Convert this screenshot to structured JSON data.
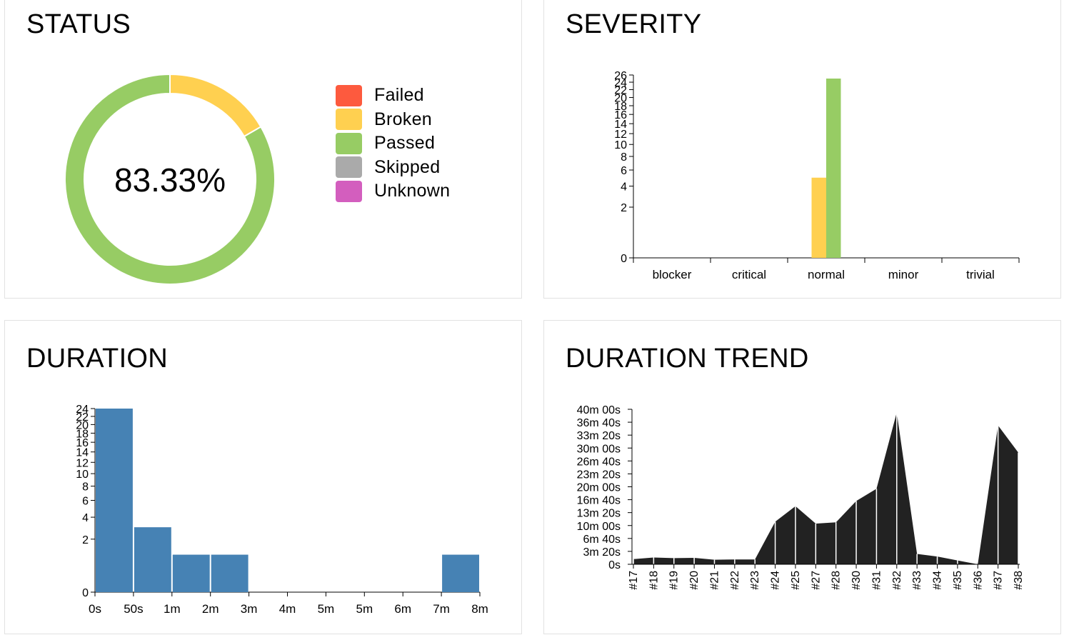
{
  "status": {
    "title": "STATUS",
    "center_label": "83.33%",
    "legend": [
      {
        "key": "failed",
        "label": "Failed",
        "color": "#fd5a3e"
      },
      {
        "key": "broken",
        "label": "Broken",
        "color": "#ffd050"
      },
      {
        "key": "passed",
        "label": "Passed",
        "color": "#97cc64"
      },
      {
        "key": "skipped",
        "label": "Skipped",
        "color": "#aaaaaa"
      },
      {
        "key": "unknown",
        "label": "Unknown",
        "color": "#d35ebe"
      }
    ],
    "chart_data": {
      "type": "pie",
      "categories": [
        "Failed",
        "Broken",
        "Passed",
        "Skipped",
        "Unknown"
      ],
      "values": [
        0,
        5,
        25,
        0,
        0
      ],
      "colors": [
        "#fd5a3e",
        "#ffd050",
        "#97cc64",
        "#aaaaaa",
        "#d35ebe"
      ]
    }
  },
  "severity": {
    "title": "SEVERITY",
    "chart_data": {
      "type": "bar",
      "categories": [
        "blocker",
        "critical",
        "normal",
        "minor",
        "trivial"
      ],
      "series": [
        {
          "key": "broken",
          "color": "#ffd050",
          "values": [
            0,
            0,
            5,
            0,
            0
          ]
        },
        {
          "key": "passed",
          "color": "#97cc64",
          "values": [
            0,
            0,
            25,
            0,
            0
          ]
        }
      ],
      "yticks": [
        0,
        2,
        4,
        6,
        8,
        10,
        12,
        14,
        16,
        18,
        20,
        22,
        24,
        26
      ],
      "ylim": [
        0,
        26
      ],
      "yscale": "sqrt"
    }
  },
  "duration": {
    "title": "DURATION",
    "chart_data": {
      "type": "bar",
      "x_tick_labels": [
        "0s",
        "50s",
        "1m",
        "2m",
        "3m",
        "4m",
        "5m",
        "5m",
        "6m",
        "7m",
        "8m"
      ],
      "bins": [
        {
          "from": 0,
          "to": 1,
          "value": 24
        },
        {
          "from": 1,
          "to": 2,
          "value": 3
        },
        {
          "from": 2,
          "to": 3,
          "value": 1
        },
        {
          "from": 3,
          "to": 4,
          "value": 1
        },
        {
          "from": 9,
          "to": 10,
          "value": 1
        }
      ],
      "bar_color": "#4682b4",
      "yticks": [
        0,
        2,
        4,
        6,
        8,
        10,
        12,
        14,
        16,
        18,
        20,
        22,
        24
      ],
      "ylim": [
        0,
        24
      ],
      "yscale": "sqrt"
    }
  },
  "trend": {
    "title": "DURATION TREND",
    "chart_data": {
      "type": "area",
      "color": "#222222",
      "x": [
        "#17",
        "#18",
        "#19",
        "#20",
        "#21",
        "#22",
        "#23",
        "#24",
        "#25",
        "#27",
        "#28",
        "#30",
        "#31",
        "#32",
        "#33",
        "#34",
        "#35",
        "#36",
        "#37",
        "#38"
      ],
      "values_seconds": [
        80,
        105,
        95,
        100,
        70,
        75,
        75,
        660,
        900,
        630,
        650,
        980,
        1170,
        2350,
        160,
        120,
        60,
        0,
        2150,
        1730
      ],
      "yticks_seconds": [
        0,
        200,
        400,
        600,
        800,
        1000,
        1200,
        1400,
        1600,
        1800,
        2000,
        2200,
        2400
      ],
      "ytick_labels": [
        "0s",
        "3m 20s",
        "6m 40s",
        "10m 00s",
        "13m 20s",
        "16m 40s",
        "20m 00s",
        "23m 20s",
        "26m 40s",
        "30m 00s",
        "33m 20s",
        "36m 40s",
        "40m 00s"
      ],
      "ylim_seconds": [
        0,
        2400
      ]
    }
  }
}
